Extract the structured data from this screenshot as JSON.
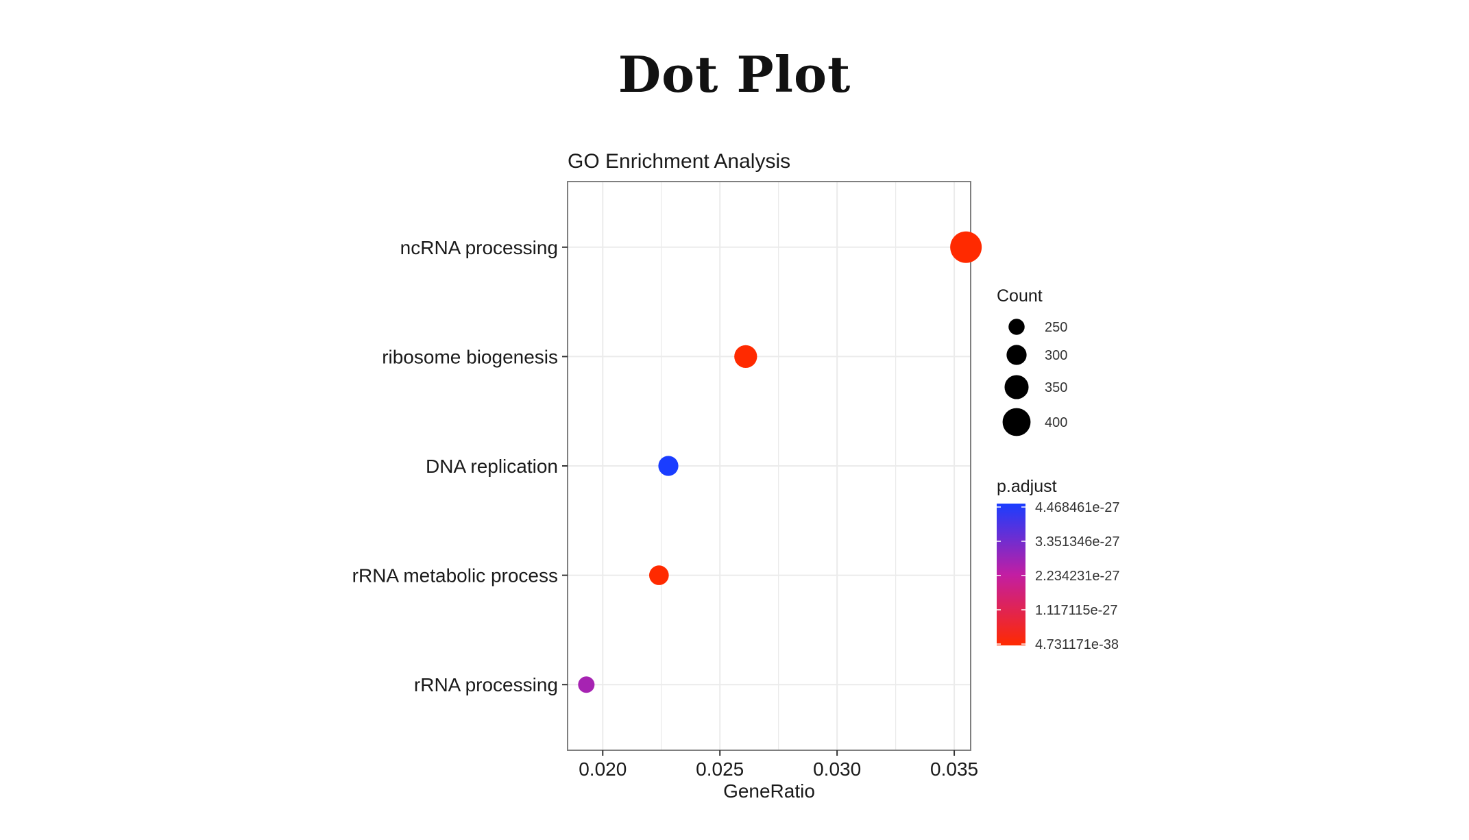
{
  "page": {
    "title": "Dot Plot"
  },
  "colors": {
    "low": "#ff2a00",
    "high": "#1a3dff",
    "mid": "#c21ea3",
    "grid": "#ebebeb",
    "border": "#7f7f7f"
  },
  "chart_data": {
    "type": "scatter",
    "title": "GO Enrichment Analysis",
    "xlabel": "GeneRatio",
    "ylabel": "",
    "xlim": [
      0.0185,
      0.0357
    ],
    "x_ticks": [
      "0.020",
      "0.025",
      "0.030",
      "0.035"
    ],
    "x_tick_values": [
      0.02,
      0.025,
      0.03,
      0.035
    ],
    "grid": true,
    "categories": [
      "ncRNA processing",
      "ribosome biogenesis",
      "DNA replication",
      "rRNA metabolic process",
      "rRNA processing"
    ],
    "points": [
      {
        "term": "ncRNA processing",
        "x": 0.0355,
        "count": 410,
        "p_adjust": 4.7e-38
      },
      {
        "term": "ribosome biogenesis",
        "x": 0.0261,
        "count": 300,
        "p_adjust": 1e-37
      },
      {
        "term": "DNA replication",
        "x": 0.0228,
        "count": 265,
        "p_adjust": 4.468461e-27
      },
      {
        "term": "rRNA metabolic process",
        "x": 0.0224,
        "count": 260,
        "p_adjust": 1e-37
      },
      {
        "term": "rRNA processing",
        "x": 0.0193,
        "count": 220,
        "p_adjust": 2.6e-27
      }
    ],
    "size_legend": {
      "title": "Count",
      "entries": [
        {
          "label": "250",
          "value": 250
        },
        {
          "label": "300",
          "value": 300
        },
        {
          "label": "350",
          "value": 350
        },
        {
          "label": "400",
          "value": 400
        }
      ]
    },
    "color_legend": {
      "title": "p.adjust",
      "labels": [
        "4.468461e-27",
        "3.351346e-27",
        "2.234231e-27",
        "1.117115e-27",
        "4.731171e-38"
      ],
      "values": [
        4.468461e-27,
        3.351346e-27,
        2.234231e-27,
        1.117115e-27,
        4.731171e-38
      ]
    },
    "legend_position": "right"
  }
}
